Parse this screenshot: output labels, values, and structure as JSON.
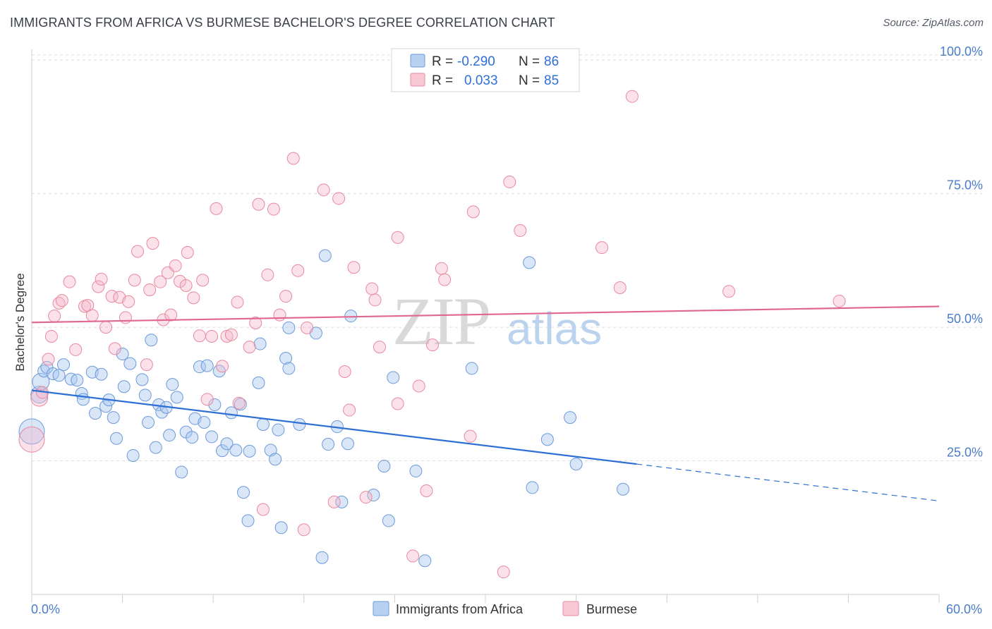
{
  "title": "IMMIGRANTS FROM AFRICA VS BURMESE BACHELOR'S DEGREE CORRELATION CHART",
  "source": "Source: ZipAtlas.com",
  "watermark": {
    "zip": "ZIP",
    "atlas": "atlas"
  },
  "colors": {
    "blue": "#5b8fd9",
    "blue_fill": "#a9c7ef",
    "pink": "#e6739a",
    "pink_fill": "#f5b6ca",
    "blue_line": "#2e6fd4",
    "pink_line": "#e0688f",
    "tick": "#4a7cc9",
    "grid": "#dcdcdc"
  },
  "legend": {
    "r_label": "R =",
    "n_label": "N =",
    "rows": [
      {
        "r": "-0.290",
        "n": "86"
      },
      {
        "r": "0.033",
        "n": "85"
      }
    ]
  },
  "chart_data": {
    "type": "scatter",
    "title": "IMMIGRANTS FROM AFRICA VS BURMESE BACHELOR'S DEGREE CORRELATION CHART",
    "xlabel": "",
    "ylabel": "Bachelor's Degree",
    "xlim": [
      0,
      60
    ],
    "ylim": [
      0,
      102
    ],
    "x_tick_labels": [
      "0.0%",
      "60.0%"
    ],
    "y_ticks": [
      25,
      50,
      75,
      100
    ],
    "y_tick_labels": [
      "25.0%",
      "50.0%",
      "75.0%",
      "100.0%"
    ],
    "grid": true,
    "legend_position": "bottom",
    "series": [
      {
        "name": "Immigrants from Africa",
        "color": "#5b8fd9",
        "r": -0.29,
        "n": 86,
        "trend": {
          "x0": 0,
          "y0": 38.2,
          "x1": 60,
          "y1": 17.5,
          "solid_until": 40
        },
        "points": [
          [
            0.0,
            30.5,
            3
          ],
          [
            0.5,
            37.4,
            2
          ],
          [
            0.6,
            39.8,
            2
          ],
          [
            0.8,
            41.8,
            1
          ],
          [
            1.0,
            42.5,
            1
          ],
          [
            1.4,
            41.3,
            1
          ],
          [
            1.8,
            41.0,
            1
          ],
          [
            2.1,
            43.0,
            1
          ],
          [
            2.6,
            40.3,
            1
          ],
          [
            3.0,
            40.1,
            1
          ],
          [
            3.3,
            37.6,
            1
          ],
          [
            3.4,
            36.5,
            1
          ],
          [
            4.0,
            41.6,
            1
          ],
          [
            4.2,
            33.9,
            1
          ],
          [
            4.6,
            41.2,
            1
          ],
          [
            4.9,
            35.2,
            1
          ],
          [
            5.1,
            36.4,
            1
          ],
          [
            5.4,
            33.1,
            1
          ],
          [
            5.6,
            29.2,
            1
          ],
          [
            6.0,
            45.0,
            1
          ],
          [
            6.1,
            38.9,
            1
          ],
          [
            6.5,
            43.2,
            1
          ],
          [
            6.7,
            26.0,
            1
          ],
          [
            7.3,
            40.2,
            1
          ],
          [
            7.5,
            37.3,
            1
          ],
          [
            7.7,
            32.2,
            1
          ],
          [
            7.9,
            47.6,
            1
          ],
          [
            8.2,
            27.5,
            1
          ],
          [
            8.4,
            35.5,
            1
          ],
          [
            8.6,
            34.1,
            1
          ],
          [
            8.9,
            35.0,
            1
          ],
          [
            9.1,
            29.8,
            1
          ],
          [
            9.3,
            39.3,
            1
          ],
          [
            9.6,
            36.9,
            1
          ],
          [
            9.9,
            22.9,
            1
          ],
          [
            10.2,
            30.4,
            1
          ],
          [
            10.6,
            29.4,
            1
          ],
          [
            10.8,
            32.9,
            1
          ],
          [
            11.1,
            42.6,
            1
          ],
          [
            11.4,
            32.2,
            1
          ],
          [
            11.6,
            42.8,
            1
          ],
          [
            11.9,
            29.5,
            1
          ],
          [
            12.1,
            35.5,
            1
          ],
          [
            12.4,
            41.8,
            1
          ],
          [
            12.6,
            26.9,
            1
          ],
          [
            12.9,
            28.2,
            1
          ],
          [
            13.2,
            34.0,
            1
          ],
          [
            13.5,
            27.0,
            1
          ],
          [
            13.8,
            35.6,
            1
          ],
          [
            14.0,
            19.1,
            1
          ],
          [
            14.3,
            13.8,
            1
          ],
          [
            14.4,
            26.8,
            1
          ],
          [
            15.0,
            39.6,
            1
          ],
          [
            15.1,
            46.9,
            1
          ],
          [
            15.3,
            31.8,
            1
          ],
          [
            15.8,
            27.0,
            1
          ],
          [
            16.1,
            25.3,
            1
          ],
          [
            16.5,
            12.5,
            1
          ],
          [
            16.3,
            30.8,
            1
          ],
          [
            16.8,
            44.2,
            1
          ],
          [
            17.0,
            42.3,
            1
          ],
          [
            17.0,
            49.9,
            1
          ],
          [
            17.7,
            31.8,
            1
          ],
          [
            18.8,
            48.9,
            1
          ],
          [
            19.2,
            6.9,
            1
          ],
          [
            19.4,
            63.4,
            1
          ],
          [
            19.6,
            28.1,
            1
          ],
          [
            20.2,
            31.4,
            1
          ],
          [
            20.5,
            17.3,
            1
          ],
          [
            20.9,
            28.2,
            1
          ],
          [
            21.1,
            52.1,
            1
          ],
          [
            22.6,
            18.6,
            1
          ],
          [
            23.3,
            24.0,
            1
          ],
          [
            23.6,
            13.8,
            1
          ],
          [
            23.9,
            40.6,
            1
          ],
          [
            25.4,
            23.1,
            1
          ],
          [
            26.0,
            6.3,
            1
          ],
          [
            29.1,
            42.3,
            1
          ],
          [
            32.9,
            62.1,
            1
          ],
          [
            33.1,
            20.0,
            1
          ],
          [
            34.1,
            29.0,
            1
          ],
          [
            35.6,
            33.1,
            1
          ],
          [
            36.0,
            24.4,
            1
          ],
          [
            39.1,
            19.7,
            1
          ]
        ]
      },
      {
        "name": "Burmese",
        "color": "#e6739a",
        "r": 0.033,
        "n": 85,
        "trend": {
          "x0": 0,
          "y0": 50.9,
          "x1": 60,
          "y1": 53.9
        },
        "points": [
          [
            0.0,
            29.0,
            3
          ],
          [
            0.5,
            36.8,
            2
          ],
          [
            0.7,
            37.8,
            1
          ],
          [
            1.1,
            44.0,
            1
          ],
          [
            1.3,
            48.3,
            1
          ],
          [
            1.5,
            52.1,
            1
          ],
          [
            1.8,
            54.5,
            1
          ],
          [
            2.0,
            55.0,
            1
          ],
          [
            2.5,
            58.5,
            1
          ],
          [
            2.9,
            45.8,
            1
          ],
          [
            3.5,
            53.9,
            1
          ],
          [
            3.7,
            54.1,
            1
          ],
          [
            4.0,
            52.2,
            1
          ],
          [
            4.4,
            57.6,
            1
          ],
          [
            4.6,
            59.0,
            1
          ],
          [
            4.9,
            50.0,
            1
          ],
          [
            5.3,
            55.8,
            1
          ],
          [
            5.5,
            46.0,
            1
          ],
          [
            5.8,
            55.6,
            1
          ],
          [
            6.2,
            51.8,
            1
          ],
          [
            6.4,
            54.8,
            1
          ],
          [
            6.8,
            58.8,
            1
          ],
          [
            7.0,
            64.2,
            1
          ],
          [
            7.6,
            43.0,
            1
          ],
          [
            7.8,
            57.0,
            1
          ],
          [
            8.0,
            65.7,
            1
          ],
          [
            8.5,
            58.5,
            1
          ],
          [
            8.7,
            51.4,
            1
          ],
          [
            9.0,
            60.2,
            1
          ],
          [
            9.2,
            52.3,
            1
          ],
          [
            9.5,
            61.5,
            1
          ],
          [
            9.8,
            58.6,
            1
          ],
          [
            10.2,
            57.8,
            1
          ],
          [
            10.3,
            64.0,
            1
          ],
          [
            10.7,
            55.5,
            1
          ],
          [
            11.1,
            48.4,
            1
          ],
          [
            11.3,
            58.8,
            1
          ],
          [
            11.6,
            36.5,
            1
          ],
          [
            11.9,
            48.3,
            1
          ],
          [
            12.2,
            72.2,
            1
          ],
          [
            12.6,
            42.7,
            1
          ],
          [
            12.9,
            48.3,
            1
          ],
          [
            13.2,
            48.6,
            1
          ],
          [
            13.6,
            54.7,
            1
          ],
          [
            13.7,
            35.8,
            1
          ],
          [
            14.4,
            46.3,
            1
          ],
          [
            14.8,
            50.8,
            1
          ],
          [
            15.0,
            73.0,
            1
          ],
          [
            15.3,
            15.9,
            1
          ],
          [
            15.6,
            59.8,
            1
          ],
          [
            16.0,
            72.1,
            1
          ],
          [
            16.4,
            52.3,
            1
          ],
          [
            16.8,
            55.8,
            1
          ],
          [
            17.3,
            81.6,
            1
          ],
          [
            17.6,
            60.6,
            1
          ],
          [
            18.0,
            12.1,
            1
          ],
          [
            18.2,
            49.9,
            1
          ],
          [
            19.3,
            75.7,
            1
          ],
          [
            20.0,
            17.3,
            1
          ],
          [
            20.3,
            74.1,
            1
          ],
          [
            20.7,
            41.7,
            1
          ],
          [
            21.0,
            34.5,
            1
          ],
          [
            21.3,
            61.2,
            1
          ],
          [
            22.1,
            18.2,
            1
          ],
          [
            22.5,
            57.2,
            1
          ],
          [
            22.7,
            55.1,
            1
          ],
          [
            23.0,
            46.3,
            1
          ],
          [
            24.2,
            66.8,
            1
          ],
          [
            24.2,
            35.7,
            1
          ],
          [
            25.2,
            7.2,
            1
          ],
          [
            25.6,
            39.0,
            1
          ],
          [
            26.1,
            19.4,
            1
          ],
          [
            26.5,
            46.7,
            1
          ],
          [
            27.1,
            61.0,
            1
          ],
          [
            27.3,
            58.9,
            1
          ],
          [
            29.0,
            29.6,
            1
          ],
          [
            29.2,
            71.6,
            1
          ],
          [
            31.2,
            4.2,
            1
          ],
          [
            31.6,
            77.2,
            1
          ],
          [
            32.3,
            68.1,
            1
          ],
          [
            37.7,
            64.9,
            1
          ],
          [
            38.9,
            57.4,
            1
          ],
          [
            39.7,
            93.2,
            1
          ],
          [
            46.1,
            56.7,
            1
          ],
          [
            53.4,
            54.9,
            1
          ]
        ]
      }
    ]
  }
}
